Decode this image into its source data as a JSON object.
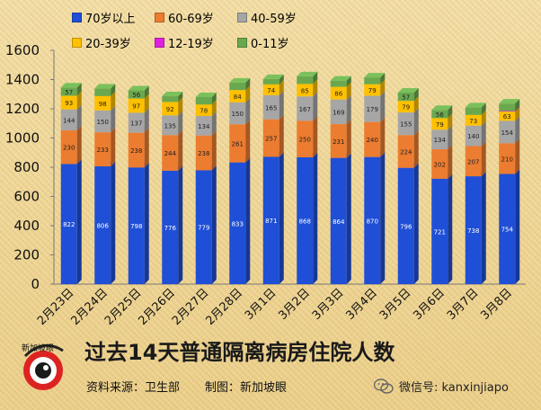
{
  "chart_data": {
    "type": "bar",
    "stacked": true,
    "title": "过去14天普通隔离病房住院人数",
    "categories": [
      "2月23日",
      "2月24日",
      "2月25日",
      "2月26日",
      "2月27日",
      "2月28日",
      "3月1日",
      "3月2日",
      "3月3日",
      "3月4日",
      "3月5日",
      "3月6日",
      "3月7日",
      "3月8日"
    ],
    "ylim": [
      0,
      1600
    ],
    "yticks": [
      "0",
      "200",
      "400",
      "600",
      "800",
      "1000",
      "1200",
      "1400",
      "1600"
    ],
    "grid": false,
    "legend_position": "top-left",
    "series": [
      {
        "name": "70岁以上",
        "color": "#1f4fd6",
        "values": [
          822,
          806,
          798,
          776,
          779,
          833,
          871,
          868,
          864,
          870,
          796,
          721,
          738,
          754
        ]
      },
      {
        "name": "60-69岁",
        "color": "#ec7c30",
        "values": [
          230,
          233,
          238,
          244,
          238,
          261,
          257,
          250,
          231,
          240,
          224,
          202,
          207,
          210
        ]
      },
      {
        "name": "40-59岁",
        "color": "#a6a6a6",
        "values": [
          144,
          150,
          137,
          135,
          134,
          150,
          165,
          167,
          169,
          179,
          155,
          134,
          140,
          154
        ]
      },
      {
        "name": "20-39岁",
        "color": "#ffc000",
        "values": [
          93,
          98,
          97,
          92,
          78,
          84,
          74,
          85,
          86,
          79,
          79,
          79,
          73,
          63
        ]
      },
      {
        "name": "12-19岁",
        "color": "#e020e0",
        "values": [
          0,
          0,
          0,
          0,
          0,
          0,
          0,
          0,
          0,
          0,
          0,
          0,
          0,
          4
        ]
      },
      {
        "name": "0-11岁",
        "color": "#6aa84f",
        "values": [
          57,
          52,
          56,
          39,
          51,
          51,
          37,
          52,
          43,
          47,
          57,
          56,
          52,
          51
        ]
      }
    ],
    "labeled_series": [
      0,
      1,
      2,
      3,
      5
    ]
  },
  "source_label": "资料来源：卫生部",
  "credit_label": "制图：新加坡眼",
  "logo_text": "新加坡眼",
  "wechat_label": "微信号: kanxinjiapo"
}
